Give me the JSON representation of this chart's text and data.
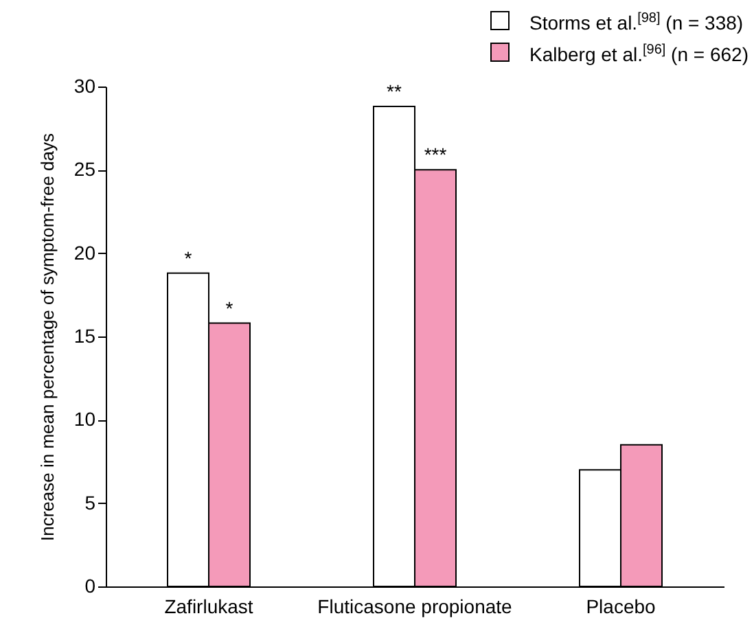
{
  "chart_data": {
    "type": "bar",
    "ylabel": "Increase in mean percentage of symptom-free days",
    "categories": [
      "Zafirlukast",
      "Fluticasone propionate",
      "Placebo"
    ],
    "series": [
      {
        "name": "Storms et al.$^{[98]}$ (n = 338)",
        "color": "#ffffff",
        "values": [
          18.8,
          28.8,
          7.0
        ]
      },
      {
        "name": "Kalberg et al.$^{[96]}$ (n = 662)",
        "color": "#f49ab9",
        "values": [
          15.8,
          25.0,
          8.5
        ]
      }
    ],
    "ylim": [
      0,
      30
    ],
    "yticks": [
      0,
      5,
      10,
      15,
      20,
      25,
      30
    ],
    "legend": "top right",
    "annotations": [
      {
        "text": "*",
        "x": "Zafirlukast",
        "y": 18.8
      },
      {
        "text": "*",
        "x": "Zafirlukast",
        "y": 15.8
      },
      {
        "text": "**",
        "x": "Fluticasone propionate",
        "y": 28.8
      },
      {
        "text": "***",
        "x": "Fluticasone propionate",
        "y": 25.0
      }
    ]
  }
}
